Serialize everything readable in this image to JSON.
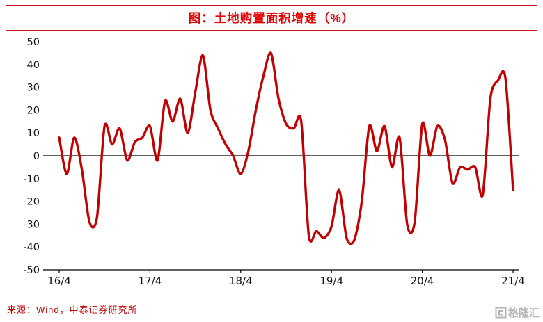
{
  "header": {
    "title": "图：土地购置面积增速（%）"
  },
  "footer": {
    "source": "来源：Wind，中泰证券研究所"
  },
  "watermark": {
    "text": "格隆汇"
  },
  "colors": {
    "accent_red": "#c9161c",
    "title_red": "#e00000",
    "line_red": "#c00000",
    "axis_black": "#000000",
    "watermark_gray": "#b5b5b5"
  },
  "chart_data": {
    "type": "line",
    "title": "土地购置面积增速（%）",
    "series_name": "土地购置面积增速",
    "frequency": "monthly",
    "xlabel": "",
    "ylabel": "%",
    "ylim": [
      -50,
      50
    ],
    "grid": false,
    "legend": "none",
    "line_color": "#c00000",
    "yticks": [
      50,
      40,
      30,
      20,
      10,
      0,
      -10,
      -20,
      -30,
      -40,
      -50
    ],
    "xticks": {
      "labels": [
        "16/4",
        "17/4",
        "18/4",
        "19/4",
        "20/4",
        "21/4"
      ],
      "indices": [
        0,
        12,
        24,
        36,
        48,
        60
      ]
    },
    "x": [
      "16/4",
      "16/5",
      "16/6",
      "16/7",
      "16/8",
      "16/9",
      "16/10",
      "16/11",
      "16/12",
      "17/1",
      "17/2",
      "17/3",
      "17/4",
      "17/5",
      "17/6",
      "17/7",
      "17/8",
      "17/9",
      "17/10",
      "17/11",
      "17/12",
      "18/1",
      "18/2",
      "18/3",
      "18/4",
      "18/5",
      "18/6",
      "18/7",
      "18/8",
      "18/9",
      "18/10",
      "18/11",
      "18/12",
      "19/1",
      "19/2",
      "19/3",
      "19/4",
      "19/5",
      "19/6",
      "19/7",
      "19/8",
      "19/9",
      "19/10",
      "19/11",
      "19/12",
      "20/1",
      "20/2",
      "20/3",
      "20/4",
      "20/5",
      "20/6",
      "20/7",
      "20/8",
      "20/9",
      "20/10",
      "20/11",
      "20/12",
      "21/1",
      "21/2",
      "21/3",
      "21/4"
    ],
    "values": [
      8,
      -8,
      8,
      -6,
      -29,
      -27,
      13,
      5,
      12,
      -2,
      6,
      8,
      13,
      -2,
      24,
      15,
      25,
      10,
      28,
      44,
      20,
      12,
      5,
      0,
      -8,
      2,
      20,
      35,
      45,
      25,
      14,
      12,
      15,
      -35,
      -33,
      -36,
      -31,
      -15,
      -36,
      -37,
      -20,
      13,
      2,
      13,
      -5,
      8,
      -30,
      -29,
      14,
      0,
      13,
      7,
      -12,
      -5,
      -6,
      -5,
      -17,
      25,
      33,
      34,
      -15
    ]
  }
}
